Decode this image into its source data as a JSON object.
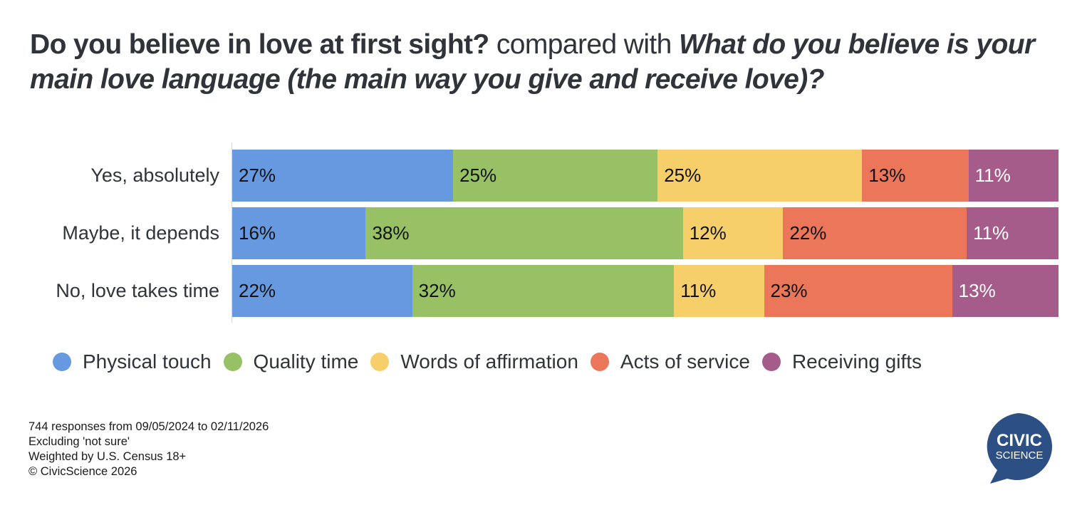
{
  "title": {
    "question_1": "Do you believe in love at first sight?",
    "connector": " compared with ",
    "question_2": "What do you believe is your main love language (the main way you give and receive love)?"
  },
  "chart_data": {
    "type": "bar",
    "orientation": "horizontal",
    "stacked": true,
    "normalized": true,
    "title": "Do you believe in love at first sight? compared with What do you believe is your main love language (the main way you give and receive love)?",
    "xlabel": "",
    "ylabel": "",
    "xlim": [
      0,
      100
    ],
    "grid": false,
    "legend_position": "bottom",
    "categories": [
      "Yes, absolutely",
      "Maybe, it depends",
      "No, love takes time"
    ],
    "series": [
      {
        "name": "Physical touch",
        "color": "#6699e0",
        "values": [
          27,
          16,
          22
        ],
        "labels": [
          "27%",
          "16%",
          "22%"
        ],
        "label_color": "dark"
      },
      {
        "name": "Quality time",
        "color": "#98c165",
        "values": [
          25,
          38,
          32
        ],
        "labels": [
          "25%",
          "38%",
          "32%"
        ],
        "label_color": "dark"
      },
      {
        "name": "Words of affirmation",
        "color": "#f6ce6a",
        "values": [
          25,
          12,
          11
        ],
        "labels": [
          "25%",
          "12%",
          "11%"
        ],
        "label_color": "dark"
      },
      {
        "name": "Acts of service",
        "color": "#eb765a",
        "values": [
          13,
          22,
          23
        ],
        "labels": [
          "13%",
          "22%",
          "23%"
        ],
        "label_color": "dark"
      },
      {
        "name": "Receiving gifts",
        "color": "#a65c8a",
        "values": [
          11,
          11,
          13
        ],
        "labels": [
          "11%",
          "11%",
          "13%"
        ],
        "label_color": "light"
      }
    ]
  },
  "footnote": [
    "744 responses from 09/05/2024 to 02/11/2026",
    "Excluding 'not sure'",
    "Weighted by U.S. Census 18+",
    "© CivicScience 2026"
  ],
  "logo": {
    "line1": "CIVIC",
    "line2": "SCIENCE",
    "color": "#2d5084"
  }
}
